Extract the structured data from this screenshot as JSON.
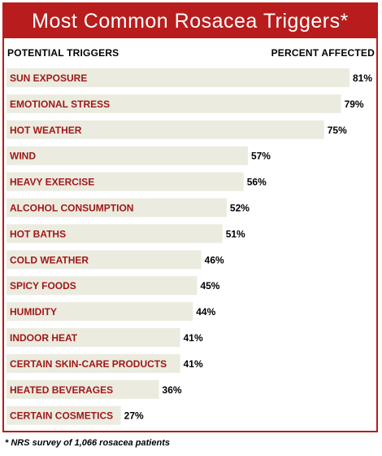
{
  "header": {
    "title": "Most Common Rosacea Triggers*",
    "left_column": "POTENTIAL TRIGGERS",
    "right_column": "PERCENT AFFECTED"
  },
  "footnote": "* NRS survey of 1,066 rosacea patients",
  "colors": {
    "accent": "#b81c1c",
    "bar": "#ecebe0",
    "label": "#a01818",
    "value": "#000000"
  },
  "chart_data": {
    "type": "bar",
    "orientation": "horizontal",
    "title": "Most Common Rosacea Triggers*",
    "xlabel": "PERCENT AFFECTED",
    "ylabel": "POTENTIAL TRIGGERS",
    "xlim": [
      0,
      100
    ],
    "categories": [
      "SUN EXPOSURE",
      "EMOTIONAL STRESS",
      "HOT WEATHER",
      "WIND",
      "HEAVY EXERCISE",
      "ALCOHOL CONSUMPTION",
      "HOT BATHS",
      "COLD WEATHER",
      "SPICY FOODS",
      "HUMIDITY",
      "INDOOR HEAT",
      "CERTAIN SKIN-CARE PRODUCTS",
      "HEATED BEVERAGES",
      "CERTAIN COSMETICS"
    ],
    "values": [
      81,
      79,
      75,
      57,
      56,
      52,
      51,
      46,
      45,
      44,
      41,
      41,
      36,
      27
    ],
    "value_labels": [
      "81%",
      "79%",
      "75%",
      "57%",
      "56%",
      "52%",
      "51%",
      "46%",
      "45%",
      "44%",
      "41%",
      "41%",
      "36%",
      "27%"
    ],
    "grid": false,
    "legend": "none"
  }
}
